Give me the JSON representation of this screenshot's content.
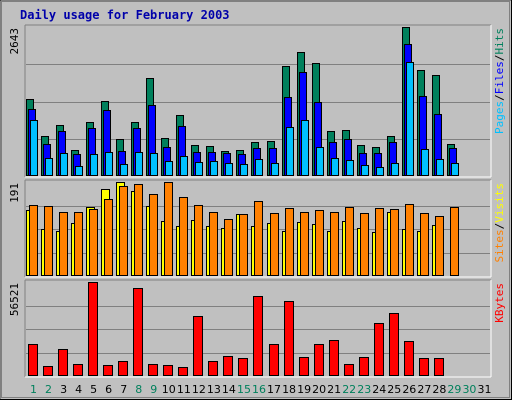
{
  "chart_data": {
    "type": "bar",
    "title": "Daily usage for February 2003",
    "categories": [
      "1",
      "2",
      "3",
      "4",
      "5",
      "6",
      "7",
      "8",
      "9",
      "10",
      "11",
      "12",
      "13",
      "14",
      "15",
      "16",
      "17",
      "18",
      "19",
      "20",
      "21",
      "22",
      "23",
      "24",
      "25",
      "26",
      "27",
      "28",
      "29",
      "30",
      "31"
    ],
    "weekend_days": [
      "1",
      "2",
      "8",
      "9",
      "15",
      "16",
      "22",
      "23",
      "29",
      "30"
    ],
    "colors": {
      "hits": "#00805c",
      "files": "#0000ff",
      "pages": "#00c0ff",
      "visits": "#ffff00",
      "sites": "#ff8000",
      "kbytes": "#ff0000",
      "title": "#0000aa",
      "weekday_label": "#000000",
      "weekend_label": "#00805c",
      "background": "#c0c0c0"
    },
    "panels": [
      {
        "id": "hits_files_pages",
        "max_label": "2643",
        "max": 2643,
        "legend": [
          {
            "label": "Hits",
            "color": "#00805c"
          },
          {
            "label": "Files",
            "color": "#0000ff"
          },
          {
            "label": "Pages",
            "color": "#00c0ff"
          }
        ],
        "series": [
          {
            "name": "Hits",
            "values": [
              1359,
              713,
              907,
              453,
              963,
              1323,
              648,
              963,
              1745,
              680,
              1074,
              552,
              533,
              446,
              453,
              607,
              615,
              1950,
              2193,
              1997,
              806,
              814,
              552,
              506,
              713,
              2643,
              1886,
              1786,
              570,
              0,
              0
            ]
          },
          {
            "name": "Files",
            "values": [
              1194,
              563,
              797,
              384,
              852,
              1169,
              438,
              852,
              1255,
              509,
              895,
              423,
              423,
              402,
              393,
              503,
              503,
              1404,
              1853,
              1309,
              597,
              663,
              416,
              406,
              596,
              2347,
              1422,
              1101,
              501,
              0,
              0
            ]
          },
          {
            "name": "Pages",
            "values": [
              1001,
              326,
              416,
              175,
              384,
              417,
              206,
              423,
              403,
              266,
              362,
              256,
              266,
              234,
              213,
              296,
              236,
              862,
              997,
              522,
              314,
              277,
              192,
              154,
              236,
              2022,
              472,
              303,
              228,
              0,
              0
            ]
          }
        ]
      },
      {
        "id": "visits_sites",
        "max_label": "191",
        "max": 191,
        "legend": [
          {
            "label": "Visits",
            "color": "#ffff00"
          },
          {
            "label": "Sites",
            "color": "#ff8000"
          }
        ],
        "series": [
          {
            "name": "Visits",
            "values": [
              135,
              96,
              92,
              107,
              141,
              177,
              191,
              173,
              143,
              111,
              102,
              114,
              101,
              98,
              126,
              101,
              107,
              92,
              110,
              106,
              92,
              111,
              98,
              90,
              131,
              96,
              91,
              104,
              0,
              0,
              0
            ]
          },
          {
            "name": "Sites",
            "values": [
              145,
              142,
              130,
              131,
              136,
              157,
              183,
              186,
              166,
              191,
              160,
              145,
              130,
              116,
              125,
              152,
              128,
              138,
              131,
              135,
              131,
              140,
              128,
              138,
              136,
              146,
              128,
              122,
              140,
              0,
              0
            ]
          }
        ]
      },
      {
        "id": "kbytes",
        "max_label": "56521",
        "max": 56521,
        "legend": [
          {
            "label": "KBytes",
            "color": "#ff0000"
          }
        ],
        "series": [
          {
            "name": "KBytes",
            "values": [
              19461,
              6193,
              16152,
              7430,
              56521,
              6636,
              8846,
              53207,
              7430,
              6636,
              5308,
              36368,
              8846,
              11944,
              10615,
              47899,
              19461,
              45244,
              11502,
              19461,
              21673,
              7430,
              11502,
              31945,
              37603,
              21235,
              10615,
              10615,
              0,
              0,
              0
            ]
          }
        ]
      }
    ]
  }
}
